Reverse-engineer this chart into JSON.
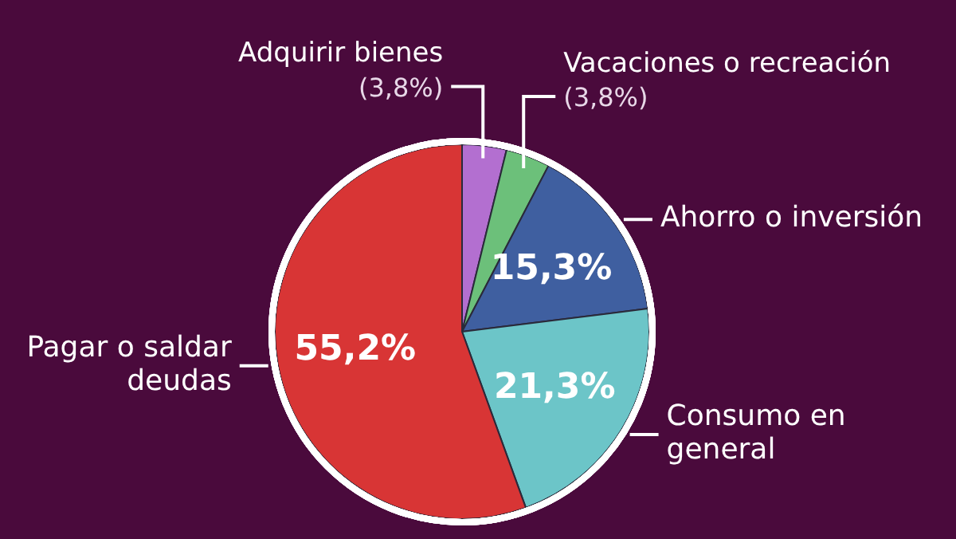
{
  "chart_data": {
    "type": "pie",
    "categories": [
      "Adquirir bienes",
      "Vacaciones o recreación",
      "Ahorro o inversión",
      "Consumo en general",
      "Pagar o saldar deudas"
    ],
    "values": [
      3.8,
      3.8,
      15.3,
      21.3,
      55.2
    ],
    "colors": [
      "#b36fd0",
      "#6cc07a",
      "#3f5fa0",
      "#6cc5c8",
      "#d83535"
    ],
    "value_labels": [
      "(3,8%)",
      "(3,8%)",
      "15,3%",
      "21,3%",
      "55,2%"
    ]
  }
}
